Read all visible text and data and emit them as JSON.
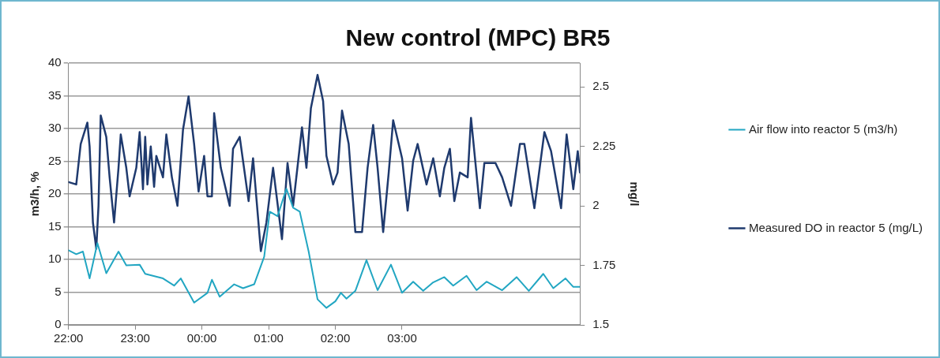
{
  "chart_data": {
    "type": "line",
    "title": "New control (MPC) BR5",
    "ylabel": "m3/h, %",
    "y2label": "mg/l",
    "xlim": [
      "2000-01-01T22:00",
      "2000-01-02T05:40"
    ],
    "xticks": [
      {
        "value": "2000-01-01T22:00",
        "label": "22:00"
      },
      {
        "value": "2000-01-01T23:00",
        "label": "23:00"
      },
      {
        "value": "2000-01-02T00:00",
        "label": "00:00"
      },
      {
        "value": "2000-01-02T01:00",
        "label": "01:00"
      },
      {
        "value": "2000-01-02T02:00",
        "label": "02:00"
      },
      {
        "value": "2000-01-02T03:00",
        "label": "03:00"
      }
    ],
    "ylim": [
      0,
      40
    ],
    "yticks": [
      0,
      5,
      10,
      15,
      20,
      25,
      30,
      35,
      40
    ],
    "y2lim": [
      1.5,
      2.6
    ],
    "y2ticks": [
      1.5,
      1.75,
      2,
      2.25,
      2.5
    ],
    "grid": "y",
    "legend": "right",
    "marker": "none",
    "line_style": "solid",
    "series": [
      {
        "name": "Air flow into reactor 5 (m3/h)",
        "color": "#22a6c2",
        "x": [
          "2000-01-01T22:00",
          "2000-01-01T22:07",
          "2000-01-01T22:13",
          "2000-01-01T22:19",
          "2000-01-01T22:26",
          "2000-01-01T22:34",
          "2000-01-01T22:45",
          "2000-01-01T22:52",
          "2000-01-01T23:04",
          "2000-01-01T23:09",
          "2000-01-01T23:25",
          "2000-01-01T23:35",
          "2000-01-01T23:41",
          "2000-01-01T23:53",
          "2000-01-02T00:05",
          "2000-01-02T00:09",
          "2000-01-02T00:16",
          "2000-01-02T00:29",
          "2000-01-02T00:37",
          "2000-01-02T00:47",
          "2000-01-02T00:56",
          "2000-01-02T01:01",
          "2000-01-02T01:08",
          "2000-01-02T01:16",
          "2000-01-02T01:22",
          "2000-01-02T01:28",
          "2000-01-02T01:36",
          "2000-01-02T01:44",
          "2000-01-02T01:52",
          "2000-01-02T02:00",
          "2000-01-02T02:05",
          "2000-01-02T02:10",
          "2000-01-02T02:18",
          "2000-01-02T02:28",
          "2000-01-02T02:38",
          "2000-01-02T02:50",
          "2000-01-02T03:00",
          "2000-01-02T03:10",
          "2000-01-02T03:19",
          "2000-01-02T03:28",
          "2000-01-02T03:38",
          "2000-01-02T03:46",
          "2000-01-02T03:58",
          "2000-01-02T04:07",
          "2000-01-02T04:16",
          "2000-01-02T04:30",
          "2000-01-02T04:43",
          "2000-01-02T04:54",
          "2000-01-02T05:07",
          "2000-01-02T05:16",
          "2000-01-02T05:27",
          "2000-01-02T05:34",
          "2000-01-02T05:40"
        ],
        "values": [
          11.4,
          10.8,
          11.2,
          7.1,
          12.5,
          7.9,
          11.2,
          9.1,
          9.2,
          7.8,
          7.1,
          6.0,
          7.1,
          3.4,
          4.9,
          6.9,
          4.3,
          6.2,
          5.6,
          6.2,
          10.4,
          17.3,
          16.6,
          20.8,
          17.9,
          17.3,
          11.2,
          3.9,
          2.6,
          3.6,
          4.9,
          4.0,
          5.2,
          9.9,
          5.3,
          9.2,
          4.9,
          6.6,
          5.2,
          6.5,
          7.3,
          6.0,
          7.5,
          5.3,
          6.6,
          5.3,
          7.3,
          5.2,
          7.8,
          5.6,
          7.1,
          5.8,
          5.8
        ]
      },
      {
        "name": "Measured DO in reactor 5 (mg/L)",
        "color": "#1f3a6e",
        "axis": "y2",
        "x": [
          "2000-01-01T22:00",
          "2000-01-01T22:07",
          "2000-01-01T22:11",
          "2000-01-01T22:17",
          "2000-01-01T22:19",
          "2000-01-01T22:22",
          "2000-01-01T22:25",
          "2000-01-01T22:27",
          "2000-01-01T22:29",
          "2000-01-01T22:34",
          "2000-01-01T22:37",
          "2000-01-01T22:41",
          "2000-01-01T22:45",
          "2000-01-01T22:47",
          "2000-01-01T22:52",
          "2000-01-01T22:55",
          "2000-01-01T23:01",
          "2000-01-01T23:04",
          "2000-01-01T23:07",
          "2000-01-01T23:09",
          "2000-01-01T23:11",
          "2000-01-01T23:14",
          "2000-01-01T23:17",
          "2000-01-01T23:19",
          "2000-01-01T23:25",
          "2000-01-01T23:28",
          "2000-01-01T23:33",
          "2000-01-01T23:38",
          "2000-01-01T23:43",
          "2000-01-01T23:48",
          "2000-01-01T23:53",
          "2000-01-01T23:57",
          "2000-01-02T00:02",
          "2000-01-02T00:05",
          "2000-01-02T00:09",
          "2000-01-02T00:11",
          "2000-01-02T00:17",
          "2000-01-02T00:25",
          "2000-01-02T00:28",
          "2000-01-02T00:34",
          "2000-01-02T00:42",
          "2000-01-02T00:46",
          "2000-01-02T00:53",
          "2000-01-02T00:58",
          "2000-01-02T01:04",
          "2000-01-02T01:12",
          "2000-01-02T01:17",
          "2000-01-02T01:22",
          "2000-01-02T01:30",
          "2000-01-02T01:34",
          "2000-01-02T01:38",
          "2000-01-02T01:44",
          "2000-01-02T01:49",
          "2000-01-02T01:52",
          "2000-01-02T01:58",
          "2000-01-02T02:02",
          "2000-01-02T02:06",
          "2000-01-02T02:12",
          "2000-01-02T02:18",
          "2000-01-02T02:24",
          "2000-01-02T02:29",
          "2000-01-02T02:34",
          "2000-01-02T02:38",
          "2000-01-02T02:43",
          "2000-01-02T02:48",
          "2000-01-02T02:52",
          "2000-01-02T03:00",
          "2000-01-02T03:05",
          "2000-01-02T03:10",
          "2000-01-02T03:14",
          "2000-01-02T03:22",
          "2000-01-02T03:28",
          "2000-01-02T03:34",
          "2000-01-02T03:38",
          "2000-01-02T03:43",
          "2000-01-02T03:47",
          "2000-01-02T03:52",
          "2000-01-02T03:59",
          "2000-01-02T04:02",
          "2000-01-02T04:10",
          "2000-01-02T04:14",
          "2000-01-02T04:24",
          "2000-01-02T04:30",
          "2000-01-02T04:38",
          "2000-01-02T04:46",
          "2000-01-02T04:50",
          "2000-01-02T04:59",
          "2000-01-02T05:08",
          "2000-01-02T05:14",
          "2000-01-02T05:23",
          "2000-01-02T05:28",
          "2000-01-02T05:34",
          "2000-01-02T05:38",
          "2000-01-02T05:40"
        ],
        "values": [
          2.1,
          2.09,
          2.26,
          2.35,
          2.25,
          1.93,
          1.82,
          2.0,
          2.38,
          2.29,
          2.12,
          1.93,
          2.16,
          2.3,
          2.16,
          2.04,
          2.16,
          2.31,
          2.07,
          2.29,
          2.09,
          2.25,
          2.08,
          2.21,
          2.12,
          2.3,
          2.12,
          2.0,
          2.32,
          2.46,
          2.26,
          2.06,
          2.21,
          2.04,
          2.04,
          2.39,
          2.16,
          2.0,
          2.24,
          2.29,
          2.02,
          2.2,
          1.81,
          1.93,
          2.16,
          1.86,
          2.18,
          2.0,
          2.33,
          2.16,
          2.41,
          2.55,
          2.44,
          2.21,
          2.09,
          2.14,
          2.4,
          2.26,
          1.89,
          1.89,
          2.16,
          2.34,
          2.16,
          1.89,
          2.14,
          2.36,
          2.2,
          1.98,
          2.19,
          2.26,
          2.09,
          2.2,
          2.04,
          2.16,
          2.24,
          2.02,
          2.14,
          2.12,
          2.37,
          1.99,
          2.18,
          2.18,
          2.12,
          2.0,
          2.26,
          2.26,
          1.99,
          2.31,
          2.23,
          1.99,
          2.3,
          2.07,
          2.23,
          2.14
        ]
      }
    ]
  }
}
